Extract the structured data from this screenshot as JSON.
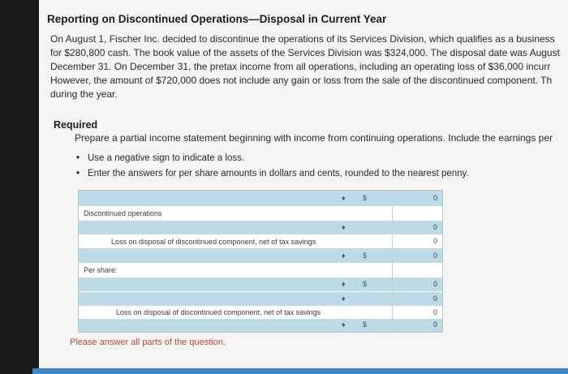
{
  "header": {
    "title": "Reporting on Discontinued Operations—Disposal in Current Year"
  },
  "paragraph": {
    "line1": "On August 1, Fischer Inc. decided to discontinue the operations of its Services Division, which qualifies as a business",
    "line2": "for $280,800 cash. The book value of the assets of the Services Division was $324,000. The disposal date was August",
    "line3": "December 31. On December 31, the pretax income from all operations, including an operating loss of $36,000 incurr",
    "line4": "However, the amount of $720,000 does not include any gain or loss from the sale of the discontinued component. Th",
    "line5": "during the year."
  },
  "required": {
    "heading": "Required",
    "instruction": "Prepare a partial income statement beginning with income from continuing operations. Include the earnings per",
    "bullets": [
      "Use a negative sign to indicate a loss.",
      "Enter the answers for per share amounts in dollars and cents, rounded to the nearest penny."
    ]
  },
  "form": {
    "row1": {
      "dollar": "$",
      "value": "0"
    },
    "discontinued_label": "Discontinued operations",
    "row3": {
      "value": "0"
    },
    "row4": {
      "label": "Loss on disposal of discontinued component, net of tax savings",
      "value": "0"
    },
    "row5": {
      "dollar": "$",
      "value": "0"
    },
    "per_share_label": "Per share:",
    "row7": {
      "dollar": "$",
      "value": "0"
    },
    "row8": {
      "value": "0"
    },
    "row9": {
      "label": "Loss on disposal of discontinued component, net of tax savings",
      "value": "0"
    },
    "row10": {
      "dollar": "$",
      "value": "0"
    }
  },
  "footer": {
    "note": "Please answer all parts of the question."
  },
  "icons": {
    "select_glyph": "♦",
    "bullet_glyph": "•"
  }
}
